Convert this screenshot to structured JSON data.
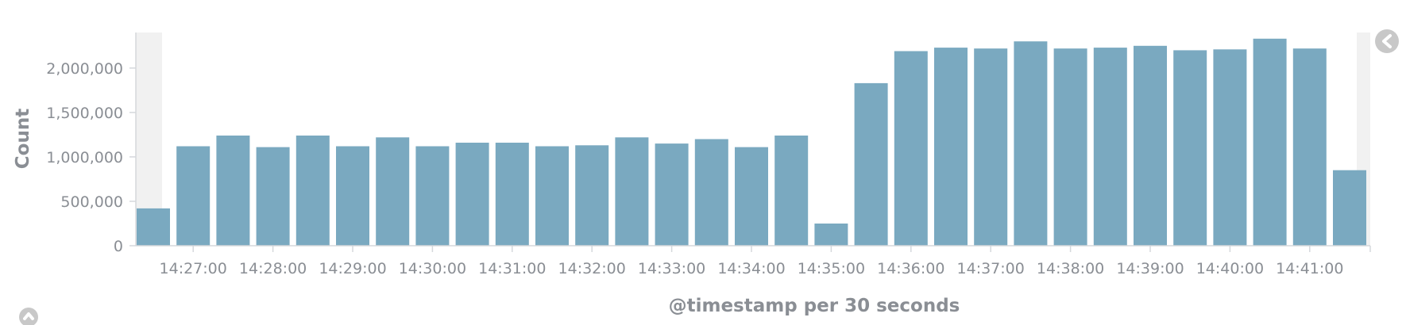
{
  "chart_data": {
    "type": "bar",
    "title": "",
    "ylabel": "Count",
    "xlabel": "@timestamp per 30 seconds",
    "ylim": [
      0,
      2400000
    ],
    "yticks": [
      0,
      500000,
      1000000,
      1500000,
      2000000
    ],
    "ytick_labels": [
      "0",
      "500,000",
      "1,000,000",
      "1,500,000",
      "2,000,000"
    ],
    "xtick_labels": [
      "14:27:00",
      "14:28:00",
      "14:29:00",
      "14:30:00",
      "14:31:00",
      "14:32:00",
      "14:33:00",
      "14:34:00",
      "14:35:00",
      "14:36:00",
      "14:37:00",
      "14:38:00",
      "14:39:00",
      "14:40:00",
      "14:41:00"
    ],
    "categories": [
      "14:26:30",
      "14:27:00",
      "14:27:30",
      "14:28:00",
      "14:28:30",
      "14:29:00",
      "14:29:30",
      "14:30:00",
      "14:30:30",
      "14:31:00",
      "14:31:30",
      "14:32:00",
      "14:32:30",
      "14:33:00",
      "14:33:30",
      "14:34:00",
      "14:34:30",
      "14:35:00",
      "14:35:30",
      "14:36:00",
      "14:36:30",
      "14:37:00",
      "14:37:30",
      "14:38:00",
      "14:38:30",
      "14:39:00",
      "14:39:30",
      "14:40:00",
      "14:40:30",
      "14:41:00",
      "14:41:30"
    ],
    "values": [
      420000,
      1120000,
      1240000,
      1110000,
      1240000,
      1120000,
      1220000,
      1120000,
      1160000,
      1160000,
      1120000,
      1130000,
      1220000,
      1150000,
      1200000,
      1110000,
      1240000,
      250000,
      1830000,
      2190000,
      2230000,
      2220000,
      2300000,
      2220000,
      2230000,
      2250000,
      2200000,
      2210000,
      2330000,
      2220000,
      850000
    ],
    "partial_buckets": [
      "first",
      "last"
    ],
    "grid": false,
    "legend": "none"
  },
  "controls": {
    "collapse_chart_icon": "chevron-left-icon",
    "toggle_panel_icon": "chevron-up-icon"
  },
  "colors": {
    "bar": "#7aa9c0",
    "partial_band": "#f1f1f1",
    "axis": "#d5d8dc",
    "text": "#8a8e94",
    "button": "#c8c8c8"
  }
}
